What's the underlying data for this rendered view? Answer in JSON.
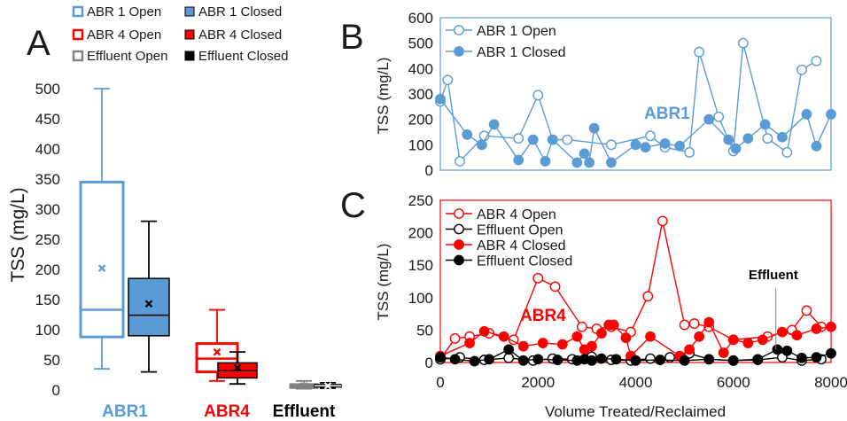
{
  "panel_labels": {
    "a": "A",
    "b": "B",
    "c": "C"
  },
  "colors": {
    "abr1": "#5b9bd5",
    "abr4": "#ff0000",
    "effluent": "#000000",
    "grey": "#808080"
  },
  "chart_data": [
    {
      "type": "box",
      "panel": "A",
      "ylabel": "TSS (mg/L)",
      "ylim": [
        0,
        500
      ],
      "yticks": [
        0,
        50,
        100,
        150,
        200,
        250,
        300,
        350,
        400,
        450,
        500
      ],
      "categories": [
        "ABR1",
        "ABR4",
        "Effluent"
      ],
      "legend": [
        {
          "name": "ABR 1 Open",
          "style": "hollow",
          "color": "#5b9bd5"
        },
        {
          "name": "ABR 1 Closed",
          "style": "filled",
          "color": "#5b9bd5"
        },
        {
          "name": "ABR 4 Open",
          "style": "hollow",
          "color": "#ff0000"
        },
        {
          "name": "ABR 4 Closed",
          "style": "filled",
          "color": "#ff0000"
        },
        {
          "name": "Effluent Open",
          "style": "hollow",
          "color": "#808080"
        },
        {
          "name": "Effluent Closed",
          "style": "filled",
          "color": "#000000"
        }
      ],
      "boxes": [
        {
          "group": "ABR1",
          "state": "Open",
          "min": 35,
          "q1": 88,
          "median": 133,
          "q3": 345,
          "max": 500,
          "mean": 202
        },
        {
          "group": "ABR1",
          "state": "Closed",
          "min": 30,
          "q1": 90,
          "median": 124,
          "q3": 185,
          "max": 280,
          "mean": 143
        },
        {
          "group": "ABR4",
          "state": "Open",
          "min": 15,
          "q1": 30,
          "median": 52,
          "q3": 77,
          "max": 133,
          "mean": 63
        },
        {
          "group": "ABR4",
          "state": "Closed",
          "min": 10,
          "q1": 20,
          "median": 32,
          "q3": 45,
          "max": 63,
          "mean": 37
        },
        {
          "group": "Effluent",
          "state": "Open",
          "min": 2,
          "q1": 4,
          "median": 6,
          "q3": 9,
          "max": 15,
          "mean": 7
        },
        {
          "group": "Effluent",
          "state": "Closed",
          "min": 3,
          "q1": 5,
          "median": 7,
          "q3": 9,
          "max": 12,
          "mean": 7
        }
      ]
    },
    {
      "type": "line",
      "panel": "B",
      "ylabel": "TSS (mg/L)",
      "annotation": "ABR1",
      "ylim": [
        0,
        600
      ],
      "yticks": [
        0,
        100,
        200,
        300,
        400,
        500,
        600
      ],
      "xlim": [
        0,
        8000
      ],
      "series": [
        {
          "name": "ABR 1 Open",
          "style": "hollow",
          "x": [
            0,
            150,
            400,
            900,
            1600,
            2000,
            2300,
            2600,
            3500,
            4300,
            4600,
            5100,
            5300,
            5700,
            6000,
            6200,
            6700,
            7100,
            7400,
            7700
          ],
          "y": [
            270,
            355,
            35,
            135,
            125,
            295,
            120,
            120,
            100,
            135,
            90,
            70,
            465,
            210,
            75,
            500,
            125,
            70,
            395,
            430
          ]
        },
        {
          "name": "ABR 1 Closed",
          "style": "filled",
          "x": [
            0,
            550,
            850,
            1100,
            1600,
            1900,
            2150,
            2300,
            2800,
            2950,
            3050,
            3150,
            3500,
            4000,
            4200,
            4600,
            4900,
            5500,
            5900,
            6050,
            6300,
            6650,
            7000,
            7500,
            7700,
            8000
          ],
          "y": [
            280,
            140,
            100,
            180,
            40,
            120,
            35,
            120,
            30,
            65,
            30,
            165,
            30,
            100,
            90,
            105,
            95,
            200,
            120,
            85,
            125,
            180,
            130,
            220,
            95,
            220
          ]
        }
      ]
    },
    {
      "type": "line",
      "panel": "C",
      "xlabel": "Volume Treated/Reclaimed",
      "ylabel": "TSS (mg/L)",
      "annotations": [
        "ABR4",
        "Effluent"
      ],
      "ylim": [
        0,
        250
      ],
      "yticks": [
        0,
        50,
        100,
        150,
        200,
        250
      ],
      "xlim": [
        0,
        8000
      ],
      "xticks": [
        0,
        2000,
        4000,
        6000,
        8000
      ],
      "series": [
        {
          "name": "ABR 4 Open",
          "style": "hollow",
          "color": "#ff0000",
          "x": [
            0,
            300,
            600,
            1000,
            1500,
            2000,
            2350,
            2900,
            3200,
            3500,
            3900,
            4250,
            4550,
            5000,
            5200,
            5500,
            6000,
            6700,
            7200,
            7500,
            7800
          ],
          "y": [
            5,
            37,
            40,
            45,
            35,
            130,
            117,
            55,
            52,
            55,
            47,
            102,
            218,
            58,
            60,
            55,
            35,
            40,
            50,
            80,
            55
          ]
        },
        {
          "name": "Effluent Open",
          "style": "hollow",
          "color": "#000000",
          "x": [
            0,
            400,
            900,
            1400,
            1900,
            2300,
            2700,
            3100,
            3500,
            3900,
            4300,
            4700,
            5100,
            5500,
            6000,
            6500,
            7000,
            7400,
            7800
          ],
          "y": [
            5,
            8,
            4,
            7,
            3,
            6,
            5,
            9,
            4,
            3,
            6,
            8,
            14,
            5,
            3,
            4,
            8,
            3,
            5
          ]
        },
        {
          "name": "ABR 4 Closed",
          "style": "filled",
          "color": "#ff0000",
          "x": [
            0,
            600,
            900,
            1300,
            1700,
            2100,
            2500,
            2800,
            2950,
            3100,
            3300,
            3450,
            3550,
            3800,
            3900,
            4300,
            4900,
            5100,
            5300,
            5500,
            5800,
            6000,
            6300,
            6600,
            7000,
            7300,
            7700,
            8000
          ],
          "y": [
            10,
            30,
            48,
            40,
            25,
            30,
            28,
            40,
            20,
            25,
            45,
            58,
            58,
            38,
            10,
            40,
            10,
            20,
            40,
            62,
            15,
            35,
            30,
            35,
            47,
            42,
            52,
            55
          ]
        },
        {
          "name": "Effluent Closed",
          "style": "filled",
          "color": "#000000",
          "x": [
            0,
            300,
            700,
            1000,
            1400,
            1700,
            2000,
            2400,
            2800,
            2950,
            3100,
            3300,
            3600,
            4000,
            4500,
            5000,
            5500,
            6000,
            6500,
            6900,
            7100,
            7400,
            7700,
            8000
          ],
          "y": [
            8,
            5,
            2,
            5,
            20,
            3,
            5,
            4,
            3,
            5,
            3,
            6,
            5,
            3,
            4,
            3,
            5,
            3,
            5,
            20,
            18,
            7,
            8,
            14
          ]
        }
      ]
    }
  ]
}
